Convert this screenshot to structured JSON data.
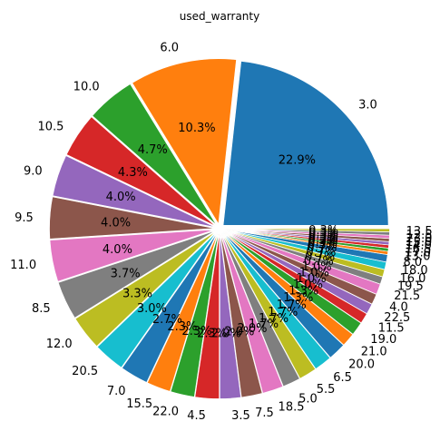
{
  "chart_data": {
    "type": "pie",
    "title": "used_warranty",
    "start_angle_deg": 0,
    "direction": "counterclockwise",
    "explode": 0.03,
    "slices": [
      {
        "label": "3.0",
        "pct_label": "22.9%",
        "value": 22.9,
        "color": "#1f77b4"
      },
      {
        "label": "6.0",
        "pct_label": "10.3%",
        "value": 10.3,
        "color": "#ff7f0e"
      },
      {
        "label": "10.0",
        "pct_label": "4.7%",
        "value": 4.7,
        "color": "#2ca02c"
      },
      {
        "label": "10.5",
        "pct_label": "4.3%",
        "value": 4.3,
        "color": "#d62728"
      },
      {
        "label": "9.0",
        "pct_label": "4.0%",
        "value": 4.0,
        "color": "#9467bd"
      },
      {
        "label": "9.5",
        "pct_label": "4.0%",
        "value": 4.0,
        "color": "#8c564b"
      },
      {
        "label": "11.0",
        "pct_label": "4.0%",
        "value": 4.0,
        "color": "#e377c2"
      },
      {
        "label": "8.5",
        "pct_label": "3.7%",
        "value": 3.7,
        "color": "#7f7f7f"
      },
      {
        "label": "12.0",
        "pct_label": "3.3%",
        "value": 3.3,
        "color": "#bcbd22"
      },
      {
        "label": "20.5",
        "pct_label": "3.0%",
        "value": 3.0,
        "color": "#17becf"
      },
      {
        "label": "7.0",
        "pct_label": "2.7%",
        "value": 2.7,
        "color": "#1f77b4"
      },
      {
        "label": "15.5",
        "pct_label": "2.3%",
        "value": 2.3,
        "color": "#ff7f0e"
      },
      {
        "label": "22.0",
        "pct_label": "2.3%",
        "value": 2.3,
        "color": "#2ca02c"
      },
      {
        "label": "4.5",
        "pct_label": "2.3%",
        "value": 2.3,
        "color": "#d62728"
      },
      {
        "label": "3.5",
        "pct_label": "2.0%",
        "value": 2.0,
        "color": "#9467bd"
      },
      {
        "label": "7.5",
        "pct_label": "2.0%",
        "value": 2.0,
        "color": "#8c564b"
      },
      {
        "label": "18.5",
        "pct_label": "2.0%",
        "value": 2.0,
        "color": "#e377c2"
      },
      {
        "label": "5.0",
        "pct_label": "1.7%",
        "value": 1.7,
        "color": "#7f7f7f"
      },
      {
        "label": "5.5",
        "pct_label": "1.7%",
        "value": 1.7,
        "color": "#bcbd22"
      },
      {
        "label": "6.5",
        "pct_label": "1.7%",
        "value": 1.7,
        "color": "#17becf"
      },
      {
        "label": "20.0",
        "pct_label": "1.7%",
        "value": 1.7,
        "color": "#1f77b4"
      },
      {
        "label": "21.0",
        "pct_label": "1.3%",
        "value": 1.3,
        "color": "#ff7f0e"
      },
      {
        "label": "19.0",
        "pct_label": "1.3%",
        "value": 1.3,
        "color": "#2ca02c"
      },
      {
        "label": "11.5",
        "pct_label": "1.0%",
        "value": 1.0,
        "color": "#d62728"
      },
      {
        "label": "22.5",
        "pct_label": "1.0%",
        "value": 1.0,
        "color": "#9467bd"
      },
      {
        "label": "4.0",
        "pct_label": "1.0%",
        "value": 1.0,
        "color": "#8c564b"
      },
      {
        "label": "21.5",
        "pct_label": "1.0%",
        "value": 1.0,
        "color": "#e377c2"
      },
      {
        "label": "19.5",
        "pct_label": "0.7%",
        "value": 0.7,
        "color": "#7f7f7f"
      },
      {
        "label": "16.0",
        "pct_label": "0.7%",
        "value": 0.7,
        "color": "#bcbd22"
      },
      {
        "label": "18.0",
        "pct_label": "0.7%",
        "value": 0.7,
        "color": "#17becf"
      },
      {
        "label": "8.0",
        "pct_label": "0.7%",
        "value": 0.7,
        "color": "#1f77b4"
      },
      {
        "label": "13.0",
        "pct_label": "0.3%",
        "value": 0.3,
        "color": "#ff7f0e"
      },
      {
        "label": "17.0",
        "pct_label": "0.3%",
        "value": 0.3,
        "color": "#2ca02c"
      },
      {
        "label": "16.5",
        "pct_label": "0.3%",
        "value": 0.3,
        "color": "#d62728"
      },
      {
        "label": "14.0",
        "pct_label": "0.3%",
        "value": 0.3,
        "color": "#9467bd"
      },
      {
        "label": "15.0",
        "pct_label": "0.3%",
        "value": 0.3,
        "color": "#8c564b"
      },
      {
        "label": "23.0",
        "pct_label": "0.3%",
        "value": 0.3,
        "color": "#e377c2"
      },
      {
        "label": "12.5",
        "pct_label": "0.3%",
        "value": 0.3,
        "color": "#7f7f7f"
      },
      {
        "label": "13.5",
        "pct_label": "0.3%",
        "value": 0.3,
        "color": "#bcbd22"
      }
    ]
  }
}
